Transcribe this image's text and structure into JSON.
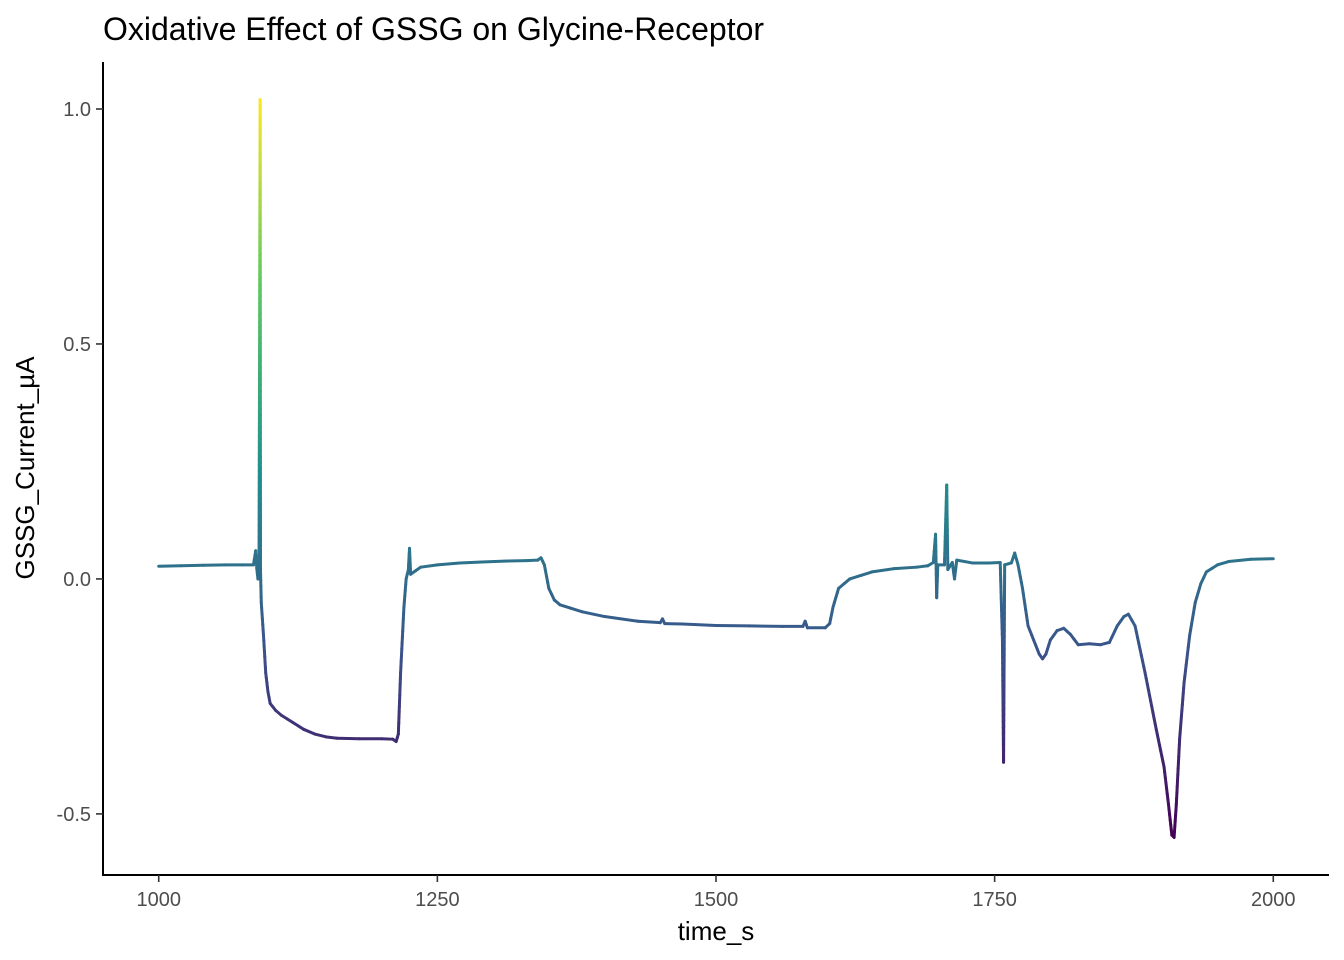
{
  "chart_data": {
    "type": "line",
    "title": "Oxidative Effect of GSSG on Glycine-Receptor",
    "xlabel": "time_s",
    "ylabel": "GSSG_Current_µA",
    "xlim": [
      950,
      2050
    ],
    "ylim": [
      -0.63,
      1.1
    ],
    "xticks": [
      {
        "value": 1000,
        "label": "1000"
      },
      {
        "value": 1250,
        "label": "1250"
      },
      {
        "value": 1500,
        "label": "1500"
      },
      {
        "value": 1750,
        "label": "1750"
      },
      {
        "value": 2000,
        "label": "2000"
      }
    ],
    "yticks": [
      {
        "value": -0.5,
        "label": "-0.5"
      },
      {
        "value": 0.0,
        "label": "0.0"
      },
      {
        "value": 0.5,
        "label": "0.5"
      },
      {
        "value": 1.0,
        "label": "1.0"
      }
    ],
    "grid": false,
    "legend": "none",
    "color_scale": "viridis (color mapped to current value)",
    "color_range": [
      -0.55,
      1.02
    ],
    "series": [
      {
        "points": [
          [
            1000,
            0.027
          ],
          [
            1020,
            0.028
          ],
          [
            1040,
            0.029
          ],
          [
            1060,
            0.03
          ],
          [
            1075,
            0.03
          ],
          [
            1085,
            0.03
          ],
          [
            1087,
            0.06
          ],
          [
            1088,
            0.022
          ],
          [
            1089,
            0.0
          ],
          [
            1090,
            0.025
          ],
          [
            1091,
            1.02
          ],
          [
            1091.3,
            0.02
          ],
          [
            1092,
            -0.05
          ],
          [
            1094,
            -0.12
          ],
          [
            1096,
            -0.2
          ],
          [
            1098,
            -0.24
          ],
          [
            1100,
            -0.265
          ],
          [
            1105,
            -0.28
          ],
          [
            1110,
            -0.29
          ],
          [
            1120,
            -0.305
          ],
          [
            1130,
            -0.32
          ],
          [
            1140,
            -0.33
          ],
          [
            1150,
            -0.336
          ],
          [
            1160,
            -0.339
          ],
          [
            1180,
            -0.34
          ],
          [
            1200,
            -0.34
          ],
          [
            1210,
            -0.341
          ],
          [
            1213,
            -0.346
          ],
          [
            1215,
            -0.33
          ],
          [
            1217,
            -0.2
          ],
          [
            1220,
            -0.06
          ],
          [
            1222,
            0.0
          ],
          [
            1224,
            0.02
          ],
          [
            1225,
            0.065
          ],
          [
            1226,
            0.01
          ],
          [
            1235,
            0.025
          ],
          [
            1250,
            0.03
          ],
          [
            1270,
            0.034
          ],
          [
            1290,
            0.036
          ],
          [
            1310,
            0.038
          ],
          [
            1330,
            0.039
          ],
          [
            1340,
            0.04
          ],
          [
            1343,
            0.045
          ],
          [
            1346,
            0.03
          ],
          [
            1350,
            -0.02
          ],
          [
            1355,
            -0.045
          ],
          [
            1360,
            -0.055
          ],
          [
            1380,
            -0.07
          ],
          [
            1400,
            -0.08
          ],
          [
            1430,
            -0.09
          ],
          [
            1450,
            -0.093
          ],
          [
            1452,
            -0.085
          ],
          [
            1454,
            -0.095
          ],
          [
            1470,
            -0.096
          ],
          [
            1500,
            -0.099
          ],
          [
            1530,
            -0.1
          ],
          [
            1560,
            -0.101
          ],
          [
            1578,
            -0.101
          ],
          [
            1580,
            -0.09
          ],
          [
            1582,
            -0.104
          ],
          [
            1598,
            -0.104
          ],
          [
            1602,
            -0.095
          ],
          [
            1605,
            -0.06
          ],
          [
            1610,
            -0.02
          ],
          [
            1620,
            0.0
          ],
          [
            1640,
            0.015
          ],
          [
            1660,
            0.022
          ],
          [
            1680,
            0.025
          ],
          [
            1690,
            0.028
          ],
          [
            1695,
            0.035
          ],
          [
            1697,
            0.095
          ],
          [
            1698,
            -0.04
          ],
          [
            1699,
            0.03
          ],
          [
            1705,
            0.03
          ],
          [
            1707,
            0.2
          ],
          [
            1708,
            0.02
          ],
          [
            1712,
            0.035
          ],
          [
            1714,
            0.0
          ],
          [
            1716,
            0.04
          ],
          [
            1730,
            0.034
          ],
          [
            1745,
            0.034
          ],
          [
            1755,
            0.035
          ],
          [
            1757,
            -0.13
          ],
          [
            1758,
            -0.39
          ],
          [
            1759,
            0.03
          ],
          [
            1765,
            0.034
          ],
          [
            1768,
            0.055
          ],
          [
            1771,
            0.03
          ],
          [
            1775,
            -0.02
          ],
          [
            1780,
            -0.1
          ],
          [
            1785,
            -0.13
          ],
          [
            1790,
            -0.16
          ],
          [
            1793,
            -0.17
          ],
          [
            1796,
            -0.16
          ],
          [
            1800,
            -0.13
          ],
          [
            1806,
            -0.11
          ],
          [
            1812,
            -0.105
          ],
          [
            1818,
            -0.118
          ],
          [
            1825,
            -0.14
          ],
          [
            1835,
            -0.138
          ],
          [
            1845,
            -0.14
          ],
          [
            1853,
            -0.135
          ],
          [
            1860,
            -0.1
          ],
          [
            1866,
            -0.08
          ],
          [
            1870,
            -0.075
          ],
          [
            1876,
            -0.1
          ],
          [
            1885,
            -0.2
          ],
          [
            1895,
            -0.32
          ],
          [
            1902,
            -0.4
          ],
          [
            1906,
            -0.48
          ],
          [
            1909,
            -0.545
          ],
          [
            1911,
            -0.55
          ],
          [
            1913,
            -0.48
          ],
          [
            1916,
            -0.34
          ],
          [
            1920,
            -0.22
          ],
          [
            1925,
            -0.12
          ],
          [
            1930,
            -0.05
          ],
          [
            1935,
            -0.01
          ],
          [
            1940,
            0.015
          ],
          [
            1950,
            0.03
          ],
          [
            1960,
            0.037
          ],
          [
            1980,
            0.042
          ],
          [
            2000,
            0.043
          ]
        ]
      }
    ]
  }
}
